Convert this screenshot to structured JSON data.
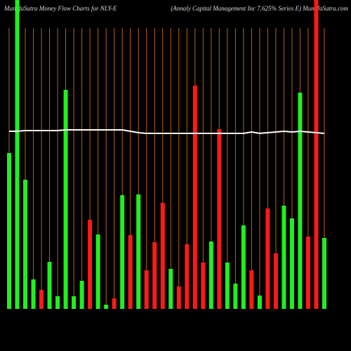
{
  "chart_data": {
    "type": "bar",
    "title": "MunafaSutra  Money Flow  Charts for NLY-E",
    "subtitle": "(Annaly Capital Management Inc 7.625% Series E) MunafaSutra.com",
    "ylim": [
      0,
      440
    ],
    "grid_color": "#b8620f",
    "values": [
      222,
      440,
      184,
      42,
      27,
      67,
      18,
      312,
      18,
      40,
      127,
      106,
      6,
      15,
      162,
      105,
      163,
      55,
      95,
      151,
      57,
      32,
      92,
      318,
      66,
      96,
      256,
      66,
      36,
      119,
      55,
      19,
      143,
      79,
      147,
      129,
      308,
      103,
      440,
      101
    ],
    "colors": [
      "#22ee22",
      "#22ee22",
      "#22ee22",
      "#22ee22",
      "#ff1a1a",
      "#22ee22",
      "#22ee22",
      "#22ee22",
      "#22ee22",
      "#22ee22",
      "#ff1a1a",
      "#22ee22",
      "#22ee22",
      "#ff1a1a",
      "#22ee22",
      "#ff1a1a",
      "#22ee22",
      "#ff1a1a",
      "#ff1a1a",
      "#ff1a1a",
      "#22ee22",
      "#ff1a1a",
      "#ff1a1a",
      "#ff1a1a",
      "#ff1a1a",
      "#22ee22",
      "#ff1a1a",
      "#22ee22",
      "#22ee22",
      "#22ee22",
      "#ff1a1a",
      "#22ee22",
      "#ff1a1a",
      "#ff1a1a",
      "#22ee22",
      "#22ee22",
      "#22ee22",
      "#ff1a1a",
      "#ff1a1a",
      "#22ee22"
    ],
    "line": {
      "color": "#ffffff",
      "values": [
        253,
        253,
        254,
        254,
        254,
        254,
        254,
        255,
        255,
        255,
        255,
        255,
        255,
        255,
        255,
        253,
        251,
        250,
        250,
        250,
        250,
        250,
        250,
        250,
        250,
        250,
        250,
        250,
        250,
        250,
        252,
        250,
        251,
        252,
        253,
        252,
        253,
        252,
        251,
        250
      ]
    }
  }
}
